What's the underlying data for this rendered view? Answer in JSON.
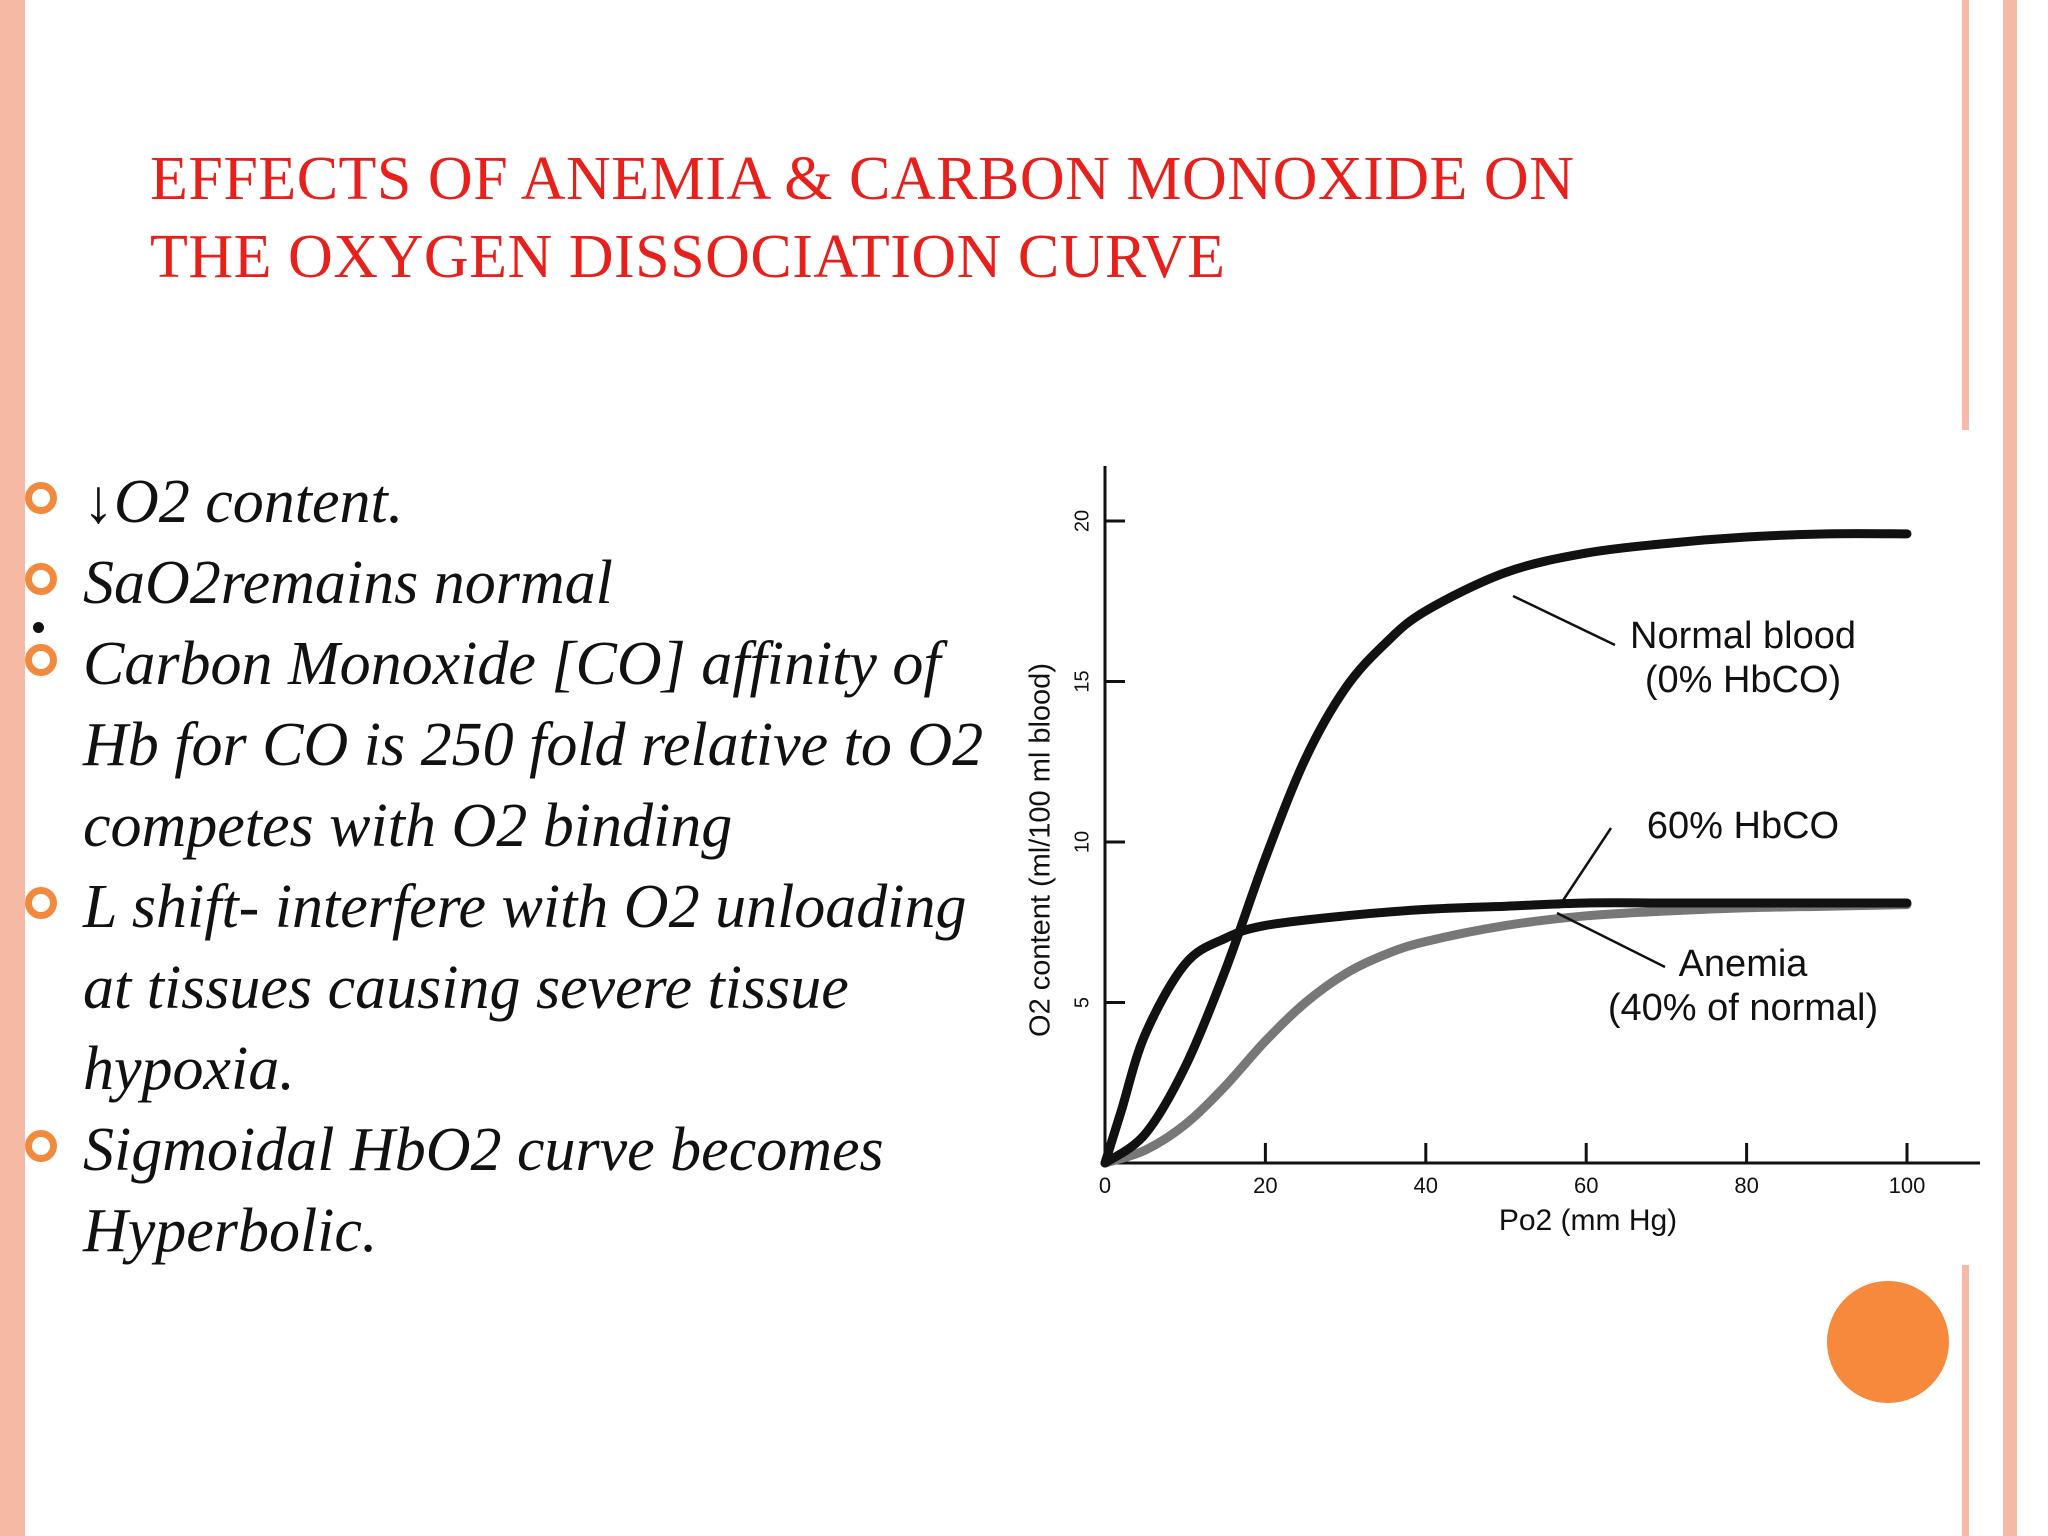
{
  "slide": {
    "title_lines": [
      "EFFECTS OF ANEMIA & CARBON MONOXIDE ON",
      "THE OXYGEN DISSOCIATION CURVE"
    ],
    "bullets": [
      "↓O2 content.",
      "SaO2remains normal",
      "Carbon Monoxide [CO] affinity of Hb for CO is 250 fold relative to O2 competes with O2 binding",
      " L shift- interfere with O2 unloading at tissues causing severe tissue hypoxia.",
      "Sigmoidal HbO2 curve becomes Hyperbolic."
    ]
  },
  "colors": {
    "title": "#e8201c",
    "accent": "#f28a3d",
    "frame": "#f6b9a3"
  },
  "chart_data": {
    "type": "line",
    "title": "",
    "xlabel": "Po2 (mm Hg)",
    "ylabel": "O2 content (ml/100 ml blood)",
    "xlim": [
      0,
      100
    ],
    "ylim": [
      0,
      20
    ],
    "xticks": [
      0,
      20,
      40,
      60,
      80,
      100
    ],
    "yticks": [
      5,
      10,
      15,
      20
    ],
    "grid": false,
    "legend": "inline-annotations",
    "series": [
      {
        "name": "Normal blood (0% HbCO)",
        "color": "#111111",
        "x": [
          0,
          5,
          10,
          15,
          20,
          25,
          30,
          35,
          40,
          50,
          60,
          70,
          80,
          90,
          100
        ],
        "y": [
          0,
          0.9,
          3.0,
          6.0,
          9.5,
          12.6,
          14.8,
          16.2,
          17.2,
          18.4,
          19.0,
          19.3,
          19.5,
          19.6,
          19.6
        ]
      },
      {
        "name": "60% HbCO",
        "color": "#111111",
        "x": [
          0,
          2,
          5,
          10,
          15,
          20,
          30,
          40,
          50,
          60,
          70,
          80,
          90,
          100
        ],
        "y": [
          0,
          1.6,
          4.0,
          6.2,
          7.0,
          7.4,
          7.7,
          7.9,
          8.0,
          8.1,
          8.1,
          8.1,
          8.1,
          8.1
        ]
      },
      {
        "name": "Anemia (40% of normal)",
        "color": "#777777",
        "x": [
          0,
          5,
          10,
          15,
          20,
          25,
          30,
          35,
          40,
          50,
          60,
          70,
          80,
          90,
          100
        ],
        "y": [
          0,
          0.4,
          1.2,
          2.4,
          3.8,
          5.0,
          5.9,
          6.5,
          6.9,
          7.4,
          7.7,
          7.85,
          7.95,
          8.0,
          8.05
        ]
      }
    ],
    "annotations": [
      {
        "lines": [
          "Normal blood",
          "(0% HbCO)"
        ]
      },
      {
        "lines": [
          "60% HbCO"
        ]
      },
      {
        "lines": [
          "Anemia",
          "(40% of normal)"
        ]
      }
    ]
  }
}
